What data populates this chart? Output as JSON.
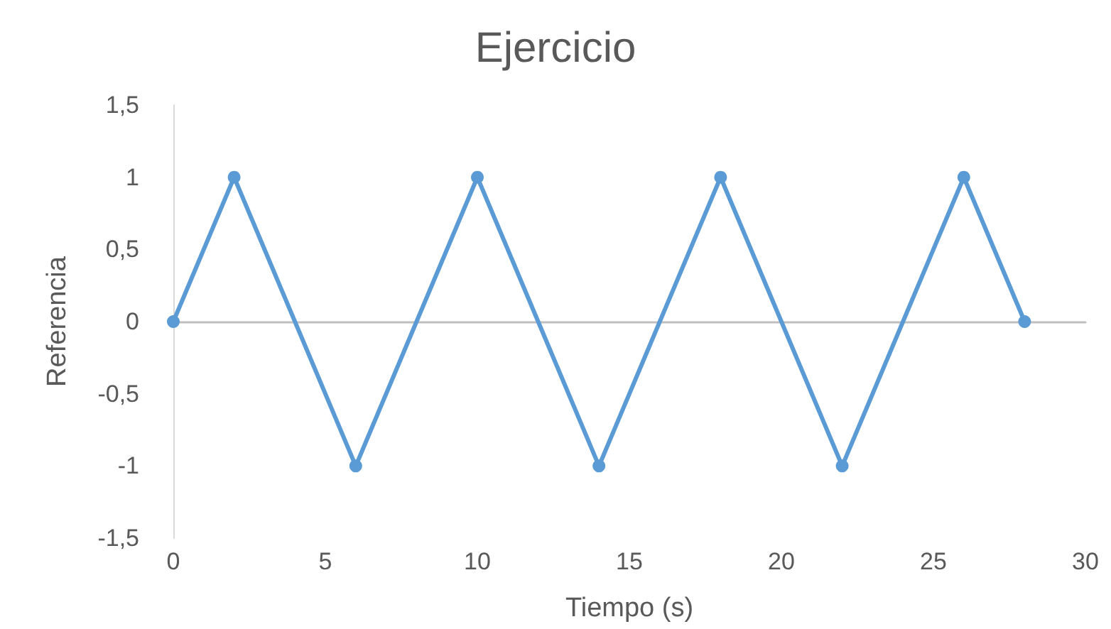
{
  "chart_data": {
    "type": "line",
    "title": "Ejercicio",
    "xlabel": "Tiempo (s)",
    "ylabel": "Referencia",
    "x": [
      0,
      2,
      6,
      10,
      14,
      18,
      22,
      26,
      28
    ],
    "series": [
      {
        "color": "#5b9bd5",
        "values": [
          0,
          1,
          -1,
          1,
          -1,
          1,
          -1,
          1,
          0
        ]
      }
    ],
    "xlim": [
      0,
      30
    ],
    "xticks": [
      0,
      5,
      10,
      15,
      20,
      25,
      30
    ],
    "ylim": [
      -1.5,
      1.5
    ],
    "yticks": [
      {
        "value": -1.5,
        "label": "-1,5"
      },
      -1,
      {
        "value": -0.5,
        "label": "-0,5"
      },
      0,
      {
        "value": 0.5,
        "label": "0,5"
      },
      1,
      {
        "value": 1.5,
        "label": "1,5"
      }
    ],
    "marker": "circle",
    "line_style": "solid"
  }
}
